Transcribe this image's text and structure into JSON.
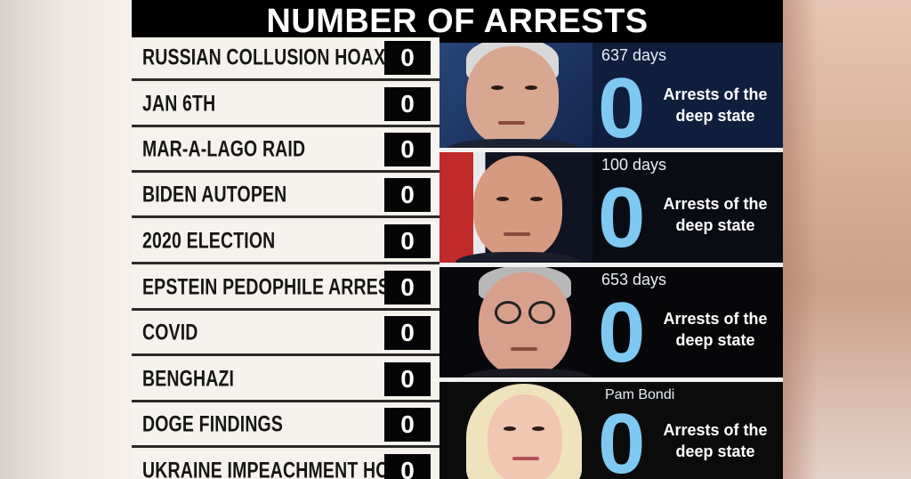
{
  "title": "NUMBER OF ARRESTS",
  "rows": [
    {
      "label": "RUSSIAN COLLUSION HOAX",
      "count": "0"
    },
    {
      "label": "JAN 6TH",
      "count": "0"
    },
    {
      "label": "MAR-A-LAGO RAID",
      "count": "0"
    },
    {
      "label": "BIDEN AUTOPEN",
      "count": "0"
    },
    {
      "label": "2020 ELECTION",
      "count": "0"
    },
    {
      "label": "EPSTEIN PEDOPHILE ARRESTS",
      "count": "0"
    },
    {
      "label": "COVID",
      "count": "0"
    },
    {
      "label": "BENGHAZI",
      "count": "0"
    },
    {
      "label": "DOGE FINDINGS",
      "count": "0"
    },
    {
      "label": "UKRAINE IMPEACHMENT HOAX",
      "count": "0"
    }
  ],
  "panels": [
    {
      "days": "637 days",
      "zero": "0",
      "caption": "Arrests of the deep state",
      "photo": "portrait-white-haired-man",
      "bg": "#0f1e3d"
    },
    {
      "days": "100 days",
      "zero": "0",
      "caption": "Arrests of the deep state",
      "photo": "portrait-bald-man",
      "bg": "#0a0c14"
    },
    {
      "days": "653 days",
      "zero": "0",
      "caption": "Arrests of the deep state",
      "photo": "portrait-man-with-glasses",
      "bg": "#07070a"
    },
    {
      "days": "Pam Bondi",
      "zero": "0",
      "caption": "Arrests of the deep state",
      "photo": "portrait-blonde-woman",
      "bg": "#0b0b0b"
    }
  ],
  "colors": {
    "zero_accent": "#7ec9f2",
    "count_box": "#050505",
    "row_background": "#f6f3ee"
  }
}
